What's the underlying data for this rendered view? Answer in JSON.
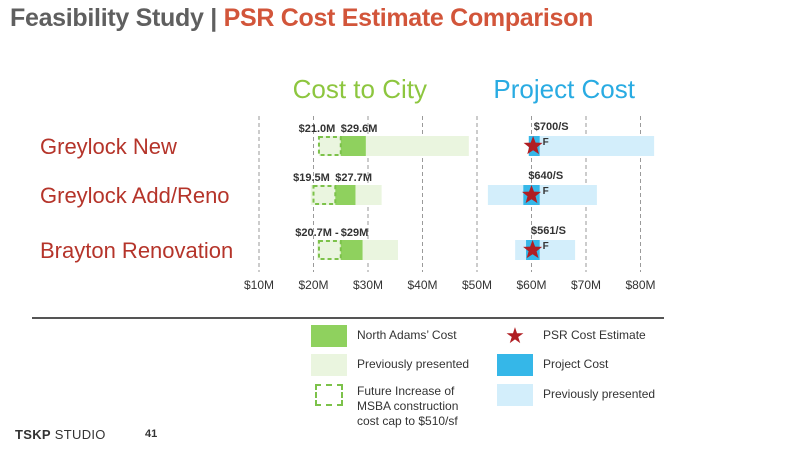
{
  "slide": {
    "title_part1": "Feasibility Study",
    "title_separator": "|",
    "title_part2": "PSR Cost Estimate Comparison",
    "logo_bold": "TSKP",
    "logo_text": "STUDIO",
    "page_number": "41"
  },
  "colors": {
    "north_adams_cost": "#8fd15e",
    "previously_presented_green": "#eaf5df",
    "future_increase_border": "#7cc24a",
    "project_cost": "#35b7e8",
    "previously_presented_blue": "#d3eefb",
    "psr_star": "#b01e23",
    "cost_to_city_heading": "#8dc63f",
    "project_cost_heading": "#29abe2",
    "row_label": "#b5342a"
  },
  "legend": {
    "north_adams_cost": "North Adams’ Cost",
    "previously_presented_green": "Previously presented",
    "future_increase_line1": "Future Increase of",
    "future_increase_line2": "MSBA construction",
    "future_increase_line3": "cost cap to $510/sf",
    "psr_cost_estimate": "PSR Cost Estimate",
    "project_cost": "Project Cost",
    "previously_presented_blue": "Previously presented"
  },
  "chart_data": {
    "type": "bar",
    "subtype": "horizontal floating range bars",
    "x_axis": {
      "unit": "$M",
      "ticks": [
        10,
        20,
        30,
        40,
        50,
        60,
        70,
        80
      ],
      "tick_labels": [
        "$10M",
        "$20M",
        "$30M",
        "$40M",
        "$50M",
        "$60M",
        "$70M",
        "$80M"
      ],
      "range": [
        10,
        80
      ],
      "grid": "dashed vertical"
    },
    "panels": [
      {
        "id": "cost_to_city",
        "heading": "Cost to City"
      },
      {
        "id": "project_cost",
        "heading": "Project Cost"
      }
    ],
    "categories": [
      "Greylock New",
      "Greylock Add/Reno",
      "Brayton Renovation"
    ],
    "rows": [
      {
        "label": "Greylock New",
        "cost_to_city": {
          "data_label_1": "$21.0M",
          "data_label_2": "$29.6M",
          "previously_presented": [
            21,
            48.5
          ],
          "future_increase": [
            21,
            25
          ],
          "north_adams_cost": [
            25,
            29.6
          ]
        },
        "project_cost": {
          "data_label_1": "$700/S",
          "data_label_2": "F",
          "previously_presented": [
            61,
            82.5
          ],
          "project_cost": [
            59.5,
            61.5
          ],
          "psr_estimate": 60.3
        }
      },
      {
        "label": "Greylock Add/Reno",
        "cost_to_city": {
          "data_label_1": "$19.5M",
          "data_label_2": "$27.7M",
          "previously_presented": [
            19.5,
            32.5
          ],
          "future_increase": [
            20,
            24
          ],
          "north_adams_cost": [
            24,
            27.7
          ]
        },
        "project_cost": {
          "data_label_1": "$640/S",
          "data_label_2": "F",
          "previously_presented": [
            52,
            72
          ],
          "project_cost": [
            58.5,
            61.5
          ],
          "psr_estimate": 60
        }
      },
      {
        "label": "Brayton Renovation",
        "cost_to_city": {
          "data_label_1": "$20.7M -",
          "data_label_2": "$29M",
          "previously_presented": [
            20.7,
            35.5
          ],
          "future_increase": [
            21,
            25
          ],
          "north_adams_cost": [
            25,
            29
          ]
        },
        "project_cost": {
          "data_label_1": "$561/S",
          "data_label_2": "F",
          "previously_presented": [
            57,
            68
          ],
          "project_cost": [
            59,
            61.5
          ],
          "psr_estimate": 60.2
        }
      }
    ]
  }
}
